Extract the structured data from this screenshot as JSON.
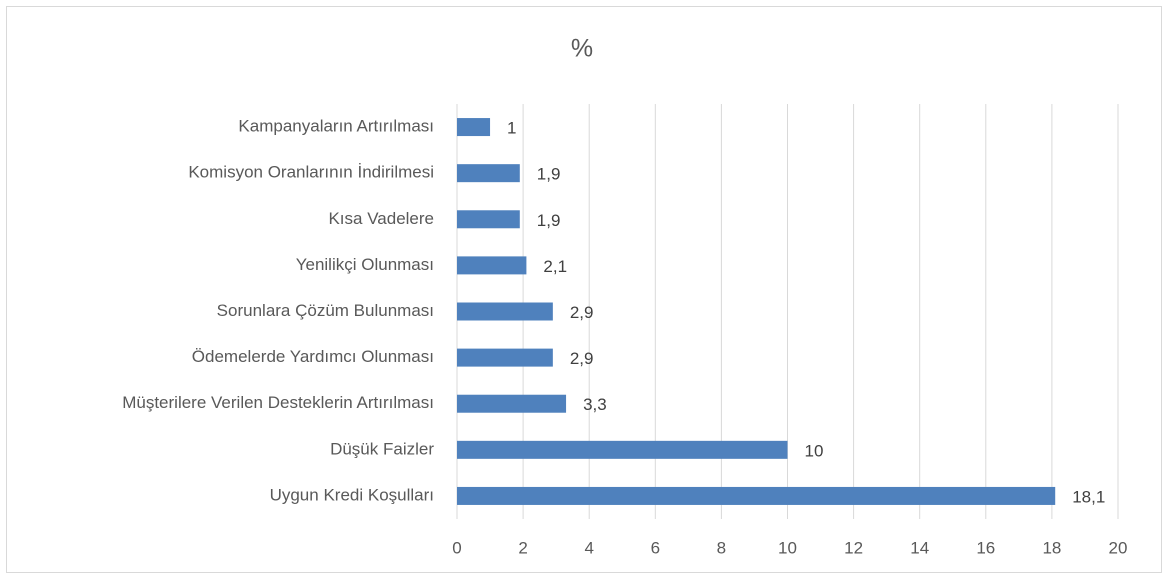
{
  "chart_data": {
    "type": "bar",
    "orientation": "horizontal",
    "title": "%",
    "categories": [
      "Kampanyaların Artırılması",
      "Komisyon Oranlarının İndirilmesi",
      "Kısa Vadelere",
      "Yenilikçi Olunması",
      "Sorunlara Çözüm Bulunması",
      "Ödemelerde Yardımcı Olunması",
      "Müşterilere Verilen Desteklerin Artırılması",
      "Düşük Faizler",
      "Uygun Kredi Koşulları"
    ],
    "values": [
      1,
      1.9,
      1.9,
      2.1,
      2.9,
      2.9,
      3.3,
      10,
      18.1
    ],
    "value_labels": [
      "1",
      "1,9",
      "1,9",
      "2,1",
      "2,9",
      "2,9",
      "3,3",
      "10",
      "18,1"
    ],
    "color": "#4f81bd",
    "xlim": [
      0,
      20
    ],
    "xticks": [
      0,
      2,
      4,
      6,
      8,
      10,
      12,
      14,
      16,
      18,
      20
    ],
    "grid": true
  }
}
